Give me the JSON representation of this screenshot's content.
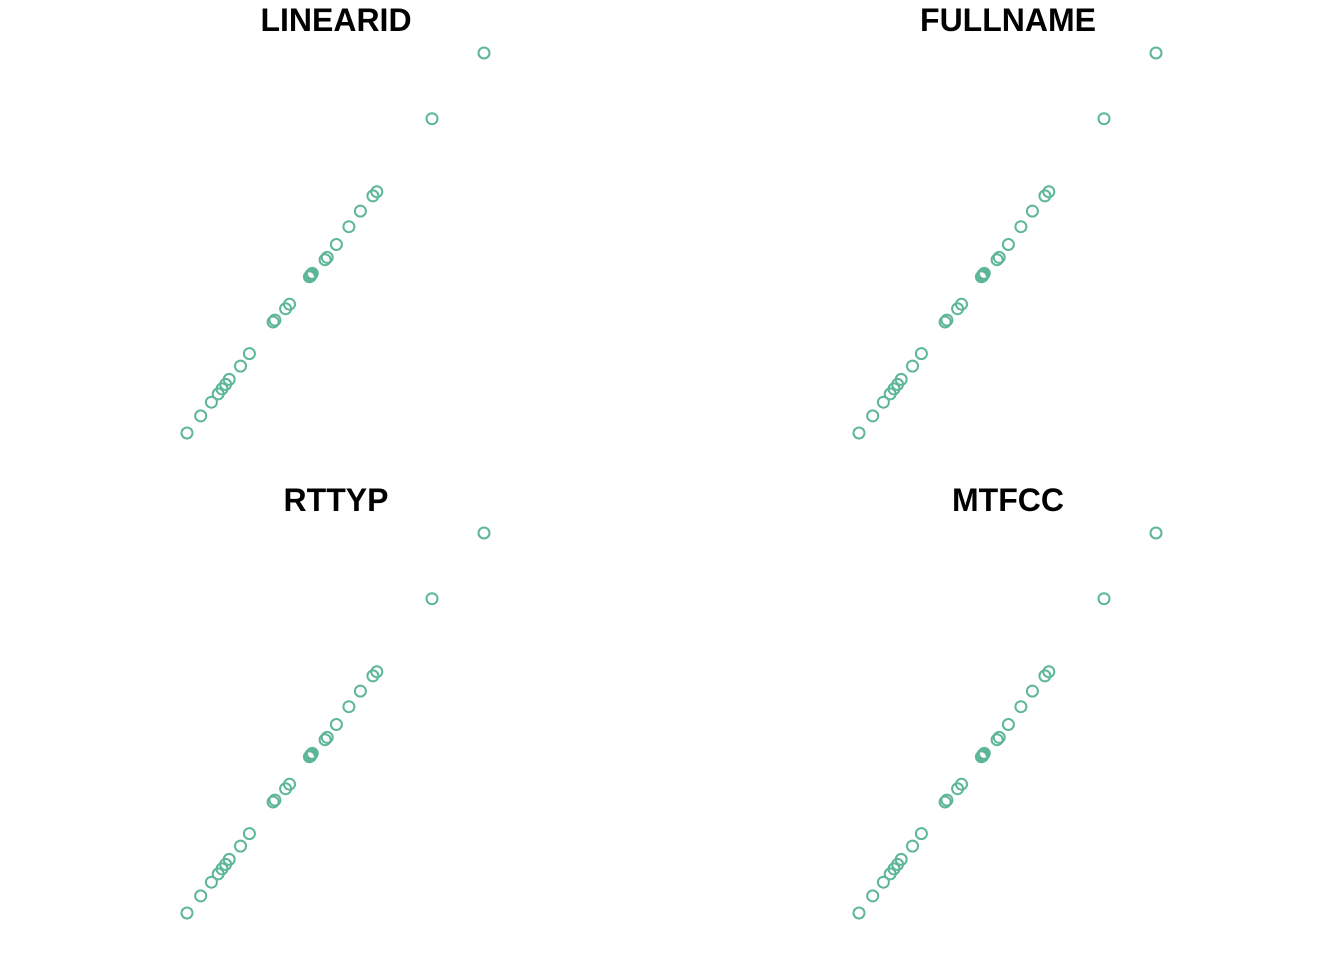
{
  "chart_data": [
    {
      "type": "scatter",
      "title": "LINEARID",
      "marker": "open-circle",
      "color": "#5DB699",
      "axes_visible": false,
      "grid": false,
      "points": [
        {
          "x": 0.0,
          "y": 0.0
        },
        {
          "x": 0.046,
          "y": 0.045
        },
        {
          "x": 0.082,
          "y": 0.081
        },
        {
          "x": 0.105,
          "y": 0.103
        },
        {
          "x": 0.118,
          "y": 0.116
        },
        {
          "x": 0.13,
          "y": 0.128
        },
        {
          "x": 0.142,
          "y": 0.141
        },
        {
          "x": 0.18,
          "y": 0.176
        },
        {
          "x": 0.21,
          "y": 0.209
        },
        {
          "x": 0.29,
          "y": 0.292
        },
        {
          "x": 0.296,
          "y": 0.297
        },
        {
          "x": 0.332,
          "y": 0.327
        },
        {
          "x": 0.345,
          "y": 0.339
        },
        {
          "x": 0.412,
          "y": 0.411
        },
        {
          "x": 0.416,
          "y": 0.413
        },
        {
          "x": 0.418,
          "y": 0.417
        },
        {
          "x": 0.422,
          "y": 0.42
        },
        {
          "x": 0.465,
          "y": 0.456
        },
        {
          "x": 0.472,
          "y": 0.462
        },
        {
          "x": 0.503,
          "y": 0.496
        },
        {
          "x": 0.545,
          "y": 0.543
        },
        {
          "x": 0.584,
          "y": 0.584
        },
        {
          "x": 0.626,
          "y": 0.624
        },
        {
          "x": 0.639,
          "y": 0.635
        },
        {
          "x": 0.825,
          "y": 0.827
        },
        {
          "x": 1.0,
          "y": 1.0
        }
      ]
    },
    {
      "type": "scatter",
      "title": "FULLNAME",
      "marker": "open-circle",
      "color": "#5DB699",
      "axes_visible": false,
      "grid": false,
      "points": [
        {
          "x": 0.0,
          "y": 0.0
        },
        {
          "x": 0.046,
          "y": 0.045
        },
        {
          "x": 0.082,
          "y": 0.081
        },
        {
          "x": 0.105,
          "y": 0.103
        },
        {
          "x": 0.118,
          "y": 0.116
        },
        {
          "x": 0.13,
          "y": 0.128
        },
        {
          "x": 0.142,
          "y": 0.141
        },
        {
          "x": 0.18,
          "y": 0.176
        },
        {
          "x": 0.21,
          "y": 0.209
        },
        {
          "x": 0.29,
          "y": 0.292
        },
        {
          "x": 0.296,
          "y": 0.297
        },
        {
          "x": 0.332,
          "y": 0.327
        },
        {
          "x": 0.345,
          "y": 0.339
        },
        {
          "x": 0.412,
          "y": 0.411
        },
        {
          "x": 0.416,
          "y": 0.413
        },
        {
          "x": 0.418,
          "y": 0.417
        },
        {
          "x": 0.422,
          "y": 0.42
        },
        {
          "x": 0.465,
          "y": 0.456
        },
        {
          "x": 0.472,
          "y": 0.462
        },
        {
          "x": 0.503,
          "y": 0.496
        },
        {
          "x": 0.545,
          "y": 0.543
        },
        {
          "x": 0.584,
          "y": 0.584
        },
        {
          "x": 0.626,
          "y": 0.624
        },
        {
          "x": 0.639,
          "y": 0.635
        },
        {
          "x": 0.825,
          "y": 0.827
        },
        {
          "x": 1.0,
          "y": 1.0
        }
      ]
    },
    {
      "type": "scatter",
      "title": "RTTYP",
      "marker": "open-circle",
      "color": "#5DB699",
      "axes_visible": false,
      "grid": false,
      "points": [
        {
          "x": 0.0,
          "y": 0.0
        },
        {
          "x": 0.046,
          "y": 0.045
        },
        {
          "x": 0.082,
          "y": 0.081
        },
        {
          "x": 0.105,
          "y": 0.103
        },
        {
          "x": 0.118,
          "y": 0.116
        },
        {
          "x": 0.13,
          "y": 0.128
        },
        {
          "x": 0.142,
          "y": 0.141
        },
        {
          "x": 0.18,
          "y": 0.176
        },
        {
          "x": 0.21,
          "y": 0.209
        },
        {
          "x": 0.29,
          "y": 0.292
        },
        {
          "x": 0.296,
          "y": 0.297
        },
        {
          "x": 0.332,
          "y": 0.327
        },
        {
          "x": 0.345,
          "y": 0.339
        },
        {
          "x": 0.412,
          "y": 0.411
        },
        {
          "x": 0.416,
          "y": 0.413
        },
        {
          "x": 0.418,
          "y": 0.417
        },
        {
          "x": 0.422,
          "y": 0.42
        },
        {
          "x": 0.465,
          "y": 0.456
        },
        {
          "x": 0.472,
          "y": 0.462
        },
        {
          "x": 0.503,
          "y": 0.496
        },
        {
          "x": 0.545,
          "y": 0.543
        },
        {
          "x": 0.584,
          "y": 0.584
        },
        {
          "x": 0.626,
          "y": 0.624
        },
        {
          "x": 0.639,
          "y": 0.635
        },
        {
          "x": 0.825,
          "y": 0.827
        },
        {
          "x": 1.0,
          "y": 1.0
        }
      ]
    },
    {
      "type": "scatter",
      "title": "MTFCC",
      "marker": "open-circle",
      "color": "#5DB699",
      "axes_visible": false,
      "grid": false,
      "points": [
        {
          "x": 0.0,
          "y": 0.0
        },
        {
          "x": 0.046,
          "y": 0.045
        },
        {
          "x": 0.082,
          "y": 0.081
        },
        {
          "x": 0.105,
          "y": 0.103
        },
        {
          "x": 0.118,
          "y": 0.116
        },
        {
          "x": 0.13,
          "y": 0.128
        },
        {
          "x": 0.142,
          "y": 0.141
        },
        {
          "x": 0.18,
          "y": 0.176
        },
        {
          "x": 0.21,
          "y": 0.209
        },
        {
          "x": 0.29,
          "y": 0.292
        },
        {
          "x": 0.296,
          "y": 0.297
        },
        {
          "x": 0.332,
          "y": 0.327
        },
        {
          "x": 0.345,
          "y": 0.339
        },
        {
          "x": 0.412,
          "y": 0.411
        },
        {
          "x": 0.416,
          "y": 0.413
        },
        {
          "x": 0.418,
          "y": 0.417
        },
        {
          "x": 0.422,
          "y": 0.42
        },
        {
          "x": 0.465,
          "y": 0.456
        },
        {
          "x": 0.472,
          "y": 0.462
        },
        {
          "x": 0.503,
          "y": 0.496
        },
        {
          "x": 0.545,
          "y": 0.543
        },
        {
          "x": 0.584,
          "y": 0.584
        },
        {
          "x": 0.626,
          "y": 0.624
        },
        {
          "x": 0.639,
          "y": 0.635
        },
        {
          "x": 0.825,
          "y": 0.827
        },
        {
          "x": 1.0,
          "y": 1.0
        }
      ]
    }
  ]
}
